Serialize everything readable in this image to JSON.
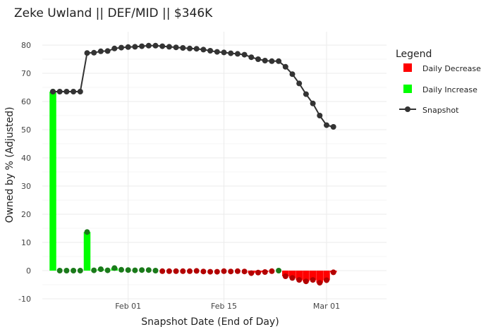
{
  "chart_data": {
    "type": "bar",
    "title": "Zeke Uwland || DEF/MID || $346K",
    "xlabel": "Snapshot Date (End of Day)",
    "ylabel": "Owned by % (Adjusted)",
    "ylim": [
      -10,
      84
    ],
    "yticks": [
      -10,
      0,
      10,
      20,
      30,
      40,
      50,
      60,
      70,
      80
    ],
    "xticks": [
      {
        "label": "Feb 01",
        "date": "2020-02-01"
      },
      {
        "label": "Feb 15",
        "date": "2020-02-15"
      },
      {
        "label": "Mar 01",
        "date": "2020-03-01"
      }
    ],
    "grid": true,
    "legend": {
      "title": "Legend",
      "position": "right",
      "entries": [
        {
          "label": "Daily Decrease",
          "color": "#ff0000",
          "kind": "square"
        },
        {
          "label": "Daily Increase",
          "color": "#00ff00",
          "kind": "square"
        },
        {
          "label": "Snapshot",
          "color": "#333333",
          "kind": "line-point"
        }
      ]
    },
    "colors": {
      "decrease": "#ff0000",
      "increase": "#00ff00",
      "decrease_point": "#b30000",
      "increase_point": "#1a7a1a",
      "snapshot": "#333333"
    },
    "start_date": "2020-01-21",
    "snapshot": {
      "name": "Snapshot",
      "dates": [
        "2020-01-21",
        "2020-01-22",
        "2020-01-23",
        "2020-01-24",
        "2020-01-25",
        "2020-01-26",
        "2020-01-27",
        "2020-01-28",
        "2020-01-29",
        "2020-01-30",
        "2020-01-31",
        "2020-02-01",
        "2020-02-02",
        "2020-02-03",
        "2020-02-04",
        "2020-02-05",
        "2020-02-06",
        "2020-02-07",
        "2020-02-08",
        "2020-02-09",
        "2020-02-10",
        "2020-02-11",
        "2020-02-12",
        "2020-02-13",
        "2020-02-14",
        "2020-02-15",
        "2020-02-16",
        "2020-02-17",
        "2020-02-18",
        "2020-02-19",
        "2020-02-20",
        "2020-02-21",
        "2020-02-22",
        "2020-02-23",
        "2020-02-24",
        "2020-02-25",
        "2020-02-26",
        "2020-02-27",
        "2020-02-28",
        "2020-02-29",
        "2020-03-01",
        "2020-03-02",
        "2020-03-03"
      ],
      "values": [
        63.5,
        63.5,
        63.5,
        63.5,
        63.5,
        77.2,
        77.3,
        77.8,
        77.9,
        78.8,
        79.1,
        79.3,
        79.4,
        79.6,
        79.8,
        79.8,
        79.6,
        79.4,
        79.2,
        79.0,
        78.8,
        78.7,
        78.4,
        78.0,
        77.6,
        77.4,
        77.1,
        76.9,
        76.6,
        75.7,
        75.0,
        74.5,
        74.3,
        74.3,
        72.3,
        69.7,
        66.4,
        62.6,
        59.3,
        55.0,
        51.6,
        51.0,
        null
      ]
    },
    "daily_change": {
      "dates": [
        "2020-01-21",
        "2020-01-22",
        "2020-01-23",
        "2020-01-24",
        "2020-01-25",
        "2020-01-26",
        "2020-01-27",
        "2020-01-28",
        "2020-01-29",
        "2020-01-30",
        "2020-01-31",
        "2020-02-01",
        "2020-02-02",
        "2020-02-03",
        "2020-02-04",
        "2020-02-05",
        "2020-02-06",
        "2020-02-07",
        "2020-02-08",
        "2020-02-09",
        "2020-02-10",
        "2020-02-11",
        "2020-02-12",
        "2020-02-13",
        "2020-02-14",
        "2020-02-15",
        "2020-02-16",
        "2020-02-17",
        "2020-02-18",
        "2020-02-19",
        "2020-02-20",
        "2020-02-21",
        "2020-02-22",
        "2020-02-23",
        "2020-02-24",
        "2020-02-25",
        "2020-02-26",
        "2020-02-27",
        "2020-02-28",
        "2020-02-29",
        "2020-03-01",
        "2020-03-02"
      ],
      "values": [
        63.5,
        0,
        0,
        0,
        0,
        13.7,
        0.1,
        0.5,
        0.1,
        0.9,
        0.3,
        0.2,
        0.1,
        0.2,
        0.2,
        0,
        -0.2,
        -0.2,
        -0.2,
        -0.2,
        -0.2,
        -0.1,
        -0.3,
        -0.4,
        -0.4,
        -0.2,
        -0.3,
        -0.2,
        -0.3,
        -0.9,
        -0.7,
        -0.5,
        -0.2,
        0,
        -2.0,
        -2.6,
        -3.3,
        -3.8,
        -3.3,
        -4.3,
        -3.4,
        -0.6
      ]
    }
  }
}
